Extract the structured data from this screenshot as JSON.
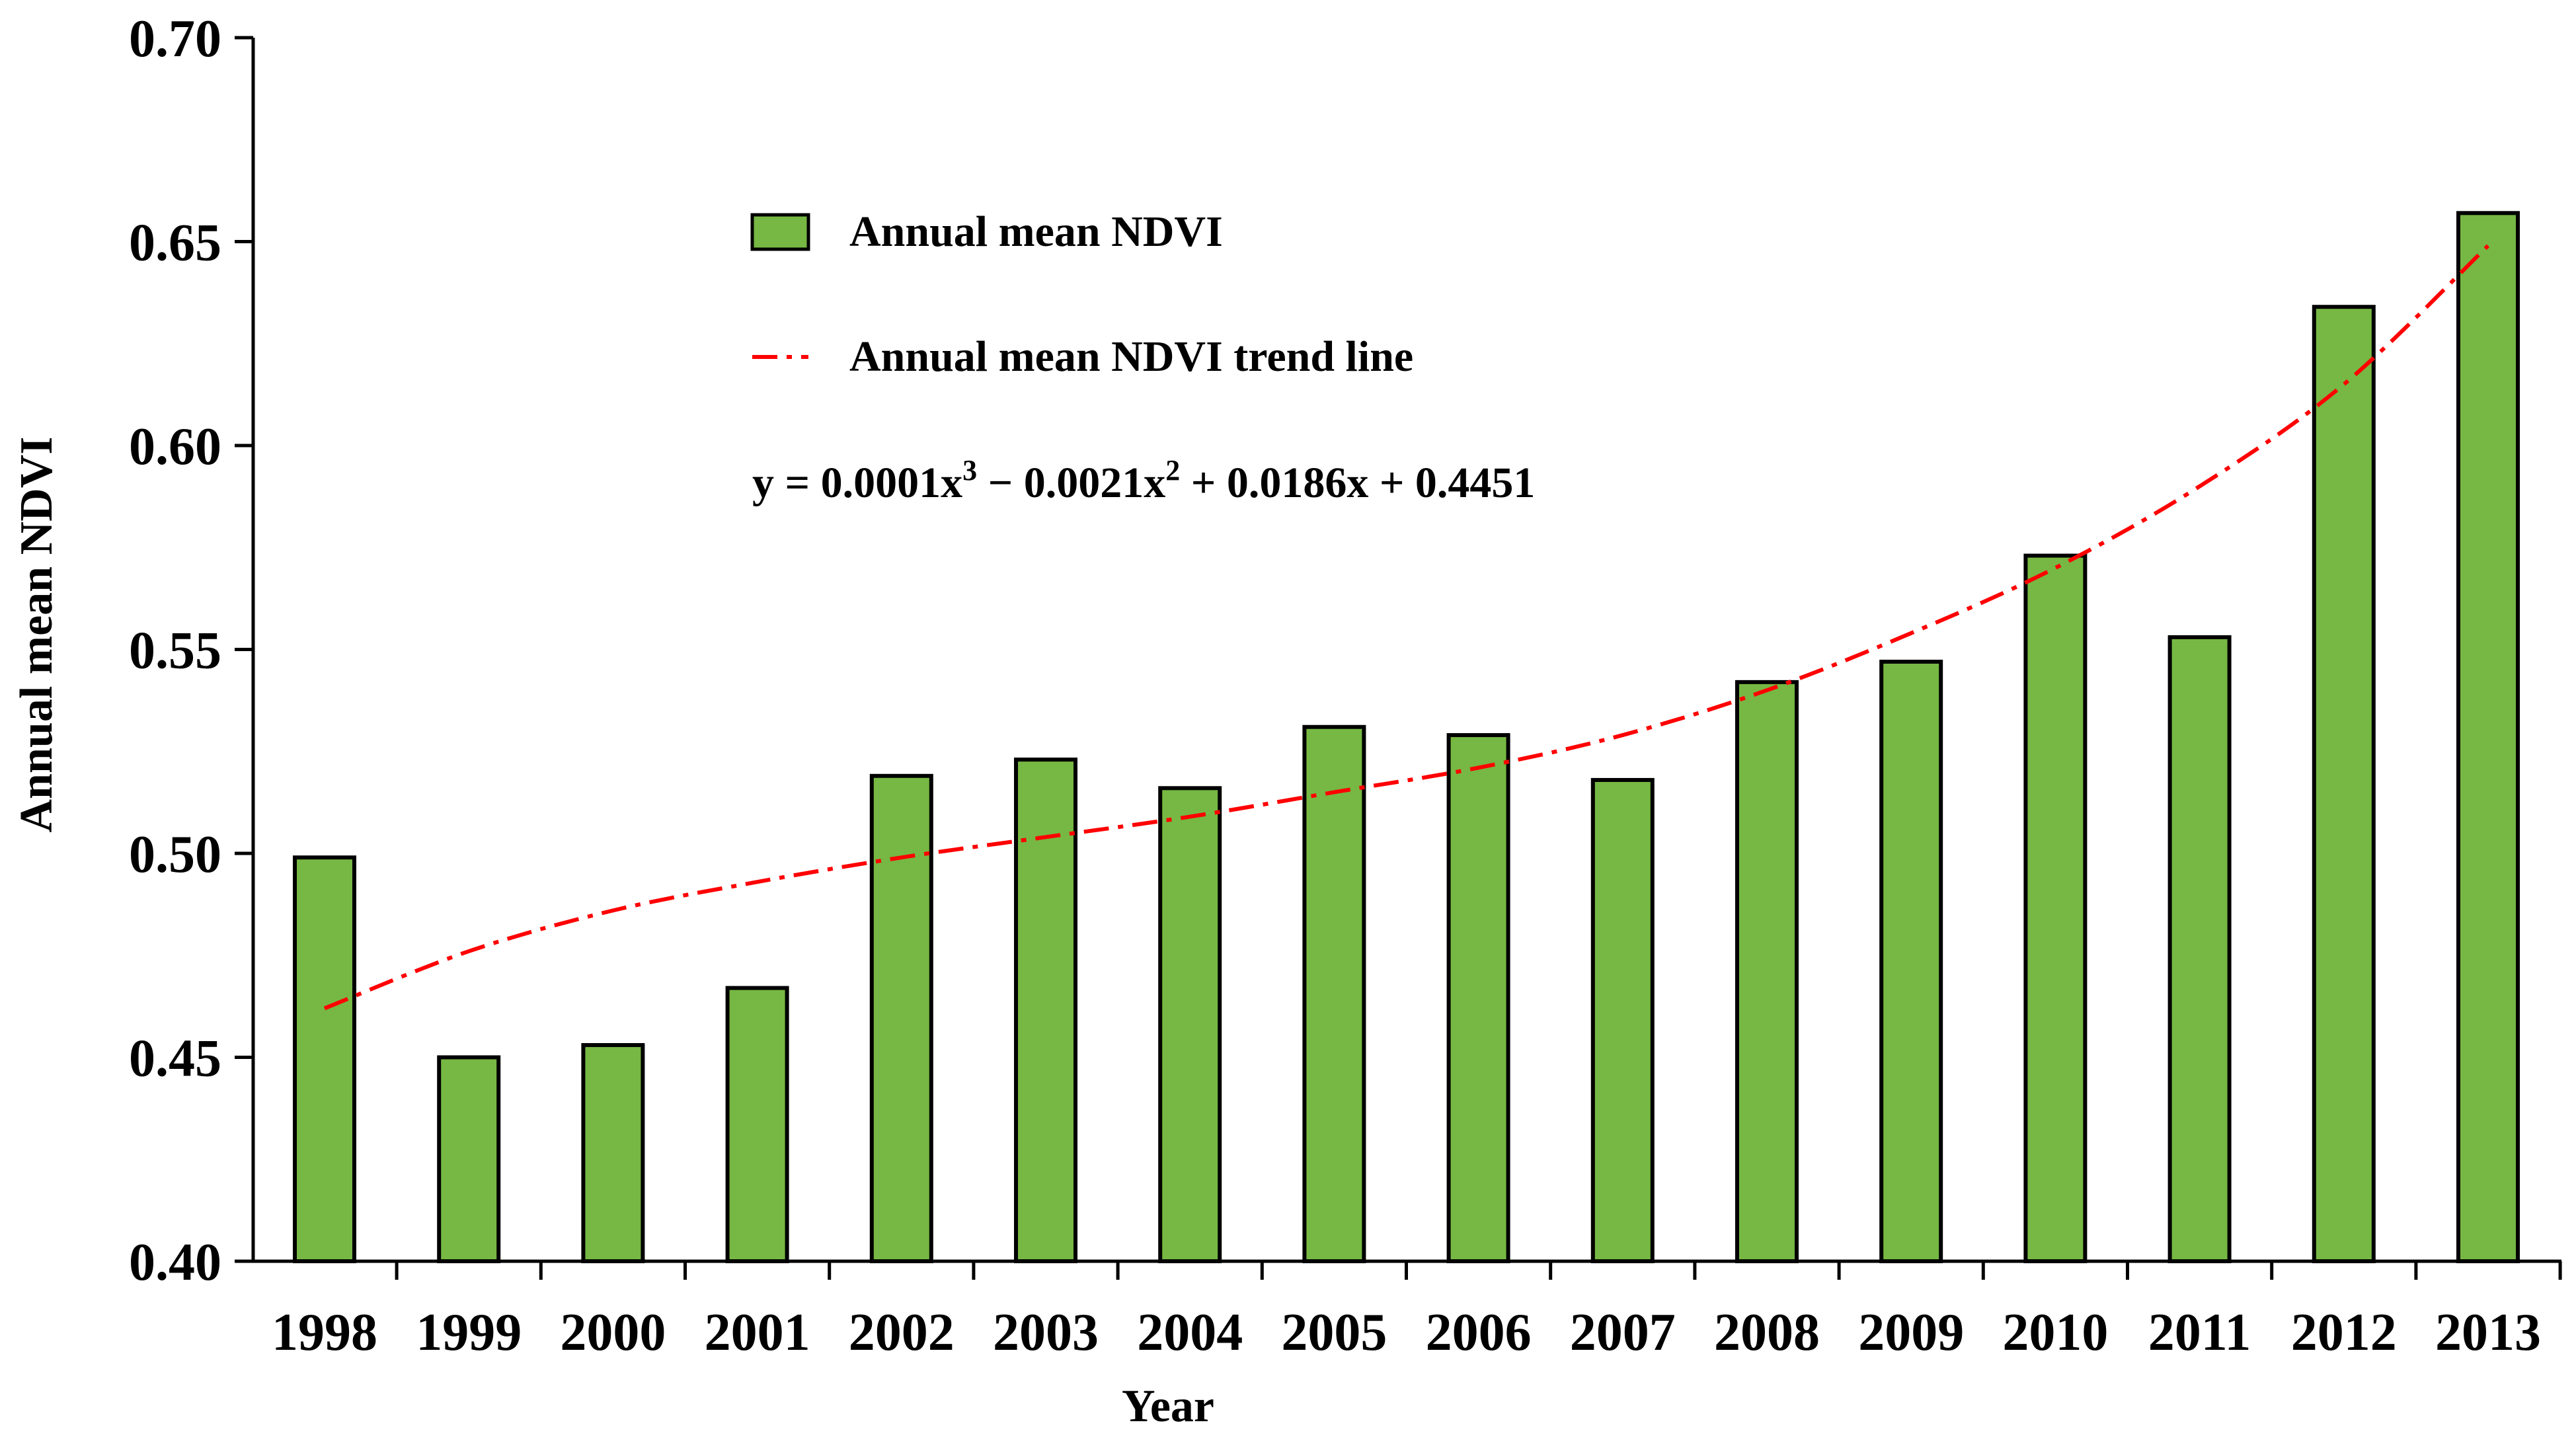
{
  "chart_data": {
    "type": "bar",
    "title": "",
    "xlabel": "Year",
    "ylabel": "Annual mean NDVI",
    "ylim": [
      0.4,
      0.7
    ],
    "yticks": [
      "0.40",
      "0.45",
      "0.50",
      "0.55",
      "0.60",
      "0.65",
      "0.70"
    ],
    "categories": [
      "1998",
      "1999",
      "2000",
      "2001",
      "2002",
      "2003",
      "2004",
      "2005",
      "2006",
      "2007",
      "2008",
      "2009",
      "2010",
      "2011",
      "2012",
      "2013"
    ],
    "series": [
      {
        "name": "Annual mean NDVI",
        "type": "bar",
        "color": "#76b843",
        "values": [
          0.499,
          0.45,
          0.453,
          0.467,
          0.519,
          0.523,
          0.516,
          0.531,
          0.529,
          0.518,
          0.542,
          0.547,
          0.573,
          0.553,
          0.634,
          0.657
        ]
      },
      {
        "name": "Annual mean NDVI trend line",
        "type": "line",
        "style": "dash-dot",
        "color": "#ff0000",
        "values": [
          0.462,
          0.476,
          0.486,
          0.493,
          0.499,
          0.504,
          0.509,
          0.515,
          0.521,
          0.529,
          0.54,
          0.554,
          0.57,
          0.59,
          0.615,
          0.649
        ]
      }
    ],
    "equation": {
      "text_1": "y = 0.0001x",
      "sup_1": "3",
      "text_2": " − 0.0021x",
      "sup_2": "2",
      "text_3": " + 0.0186x + 0.4451"
    },
    "legend_position": "top-center"
  }
}
